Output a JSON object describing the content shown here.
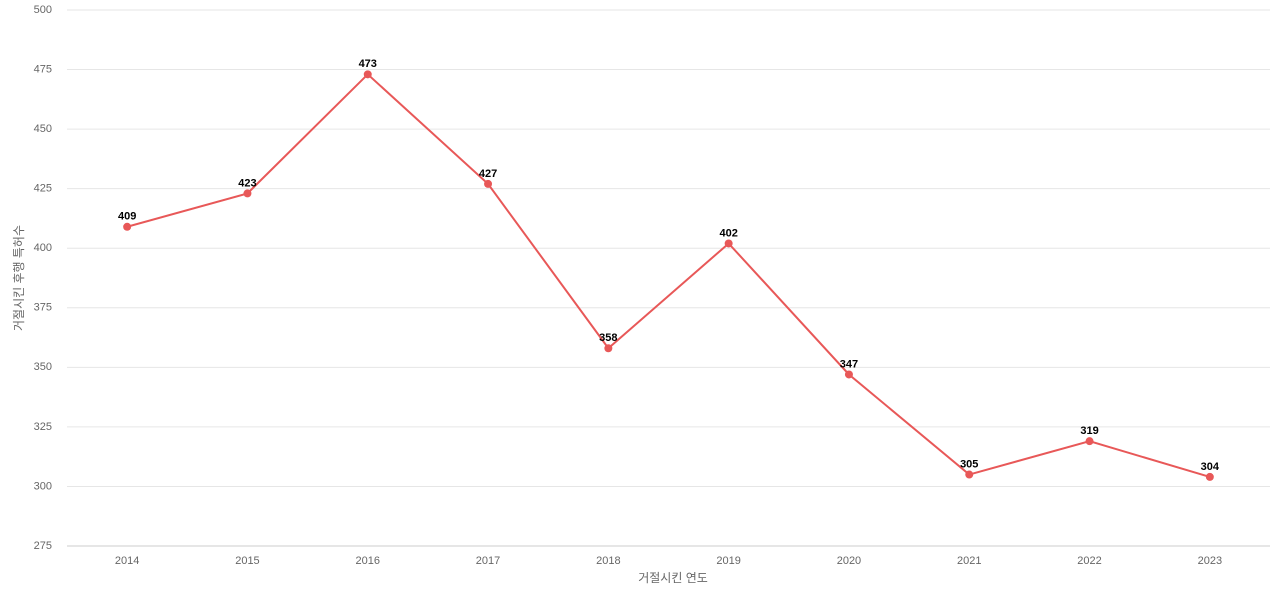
{
  "chart_data": {
    "type": "line",
    "x_label": "거절시킨 연도",
    "y_label": "거절시킨 후행 특허수",
    "categories": [
      "2014",
      "2015",
      "2016",
      "2017",
      "2018",
      "2019",
      "2020",
      "2021",
      "2022",
      "2023"
    ],
    "series": [
      {
        "color": "#e85858",
        "values": [
          409,
          423,
          473,
          427,
          358,
          402,
          347,
          305,
          319,
          304
        ]
      }
    ],
    "ylim": [
      275,
      500
    ],
    "yticks": [
      275,
      300,
      325,
      350,
      375,
      400,
      425,
      450,
      475,
      500
    ],
    "grid": true
  }
}
